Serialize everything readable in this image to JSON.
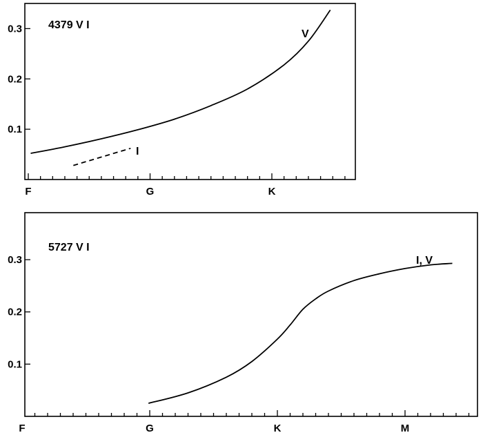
{
  "chart_data": [
    {
      "type": "line",
      "title": "4379  V I",
      "x_categories": [
        "F",
        "G",
        "K"
      ],
      "y_ticks": [
        "0.1",
        "0.2",
        "0.3"
      ],
      "ylim": [
        0.0,
        0.35
      ],
      "series": [
        {
          "name": "V",
          "style": "solid",
          "x": [
            0.02,
            0.3,
            0.6,
            0.9,
            1.2,
            1.5,
            1.8,
            2.1,
            2.3,
            2.48
          ],
          "y": [
            0.052,
            0.065,
            0.081,
            0.099,
            0.12,
            0.147,
            0.18,
            0.228,
            0.275,
            0.337
          ]
        },
        {
          "name": "I",
          "style": "dashed",
          "x": [
            0.37,
            0.84
          ],
          "y": [
            0.028,
            0.062
          ]
        }
      ],
      "annotations": [
        "V",
        "I"
      ]
    },
    {
      "type": "line",
      "title": "5727  V I",
      "x_categories": [
        "F",
        "G",
        "K",
        "M"
      ],
      "y_ticks": [
        "0.1",
        "0.2",
        "0.3"
      ],
      "ylim": [
        0.0,
        0.39
      ],
      "series": [
        {
          "name": "I, V",
          "style": "solid",
          "x": [
            0.99,
            1.3,
            1.6,
            1.8,
            2.0,
            2.1,
            2.2,
            2.3,
            2.4,
            2.6,
            2.8,
            3.0,
            3.2,
            3.37
          ],
          "y": [
            0.025,
            0.045,
            0.075,
            0.105,
            0.148,
            0.175,
            0.205,
            0.225,
            0.24,
            0.26,
            0.273,
            0.283,
            0.29,
            0.293
          ]
        }
      ],
      "annotations": [
        "I, V"
      ]
    }
  ]
}
